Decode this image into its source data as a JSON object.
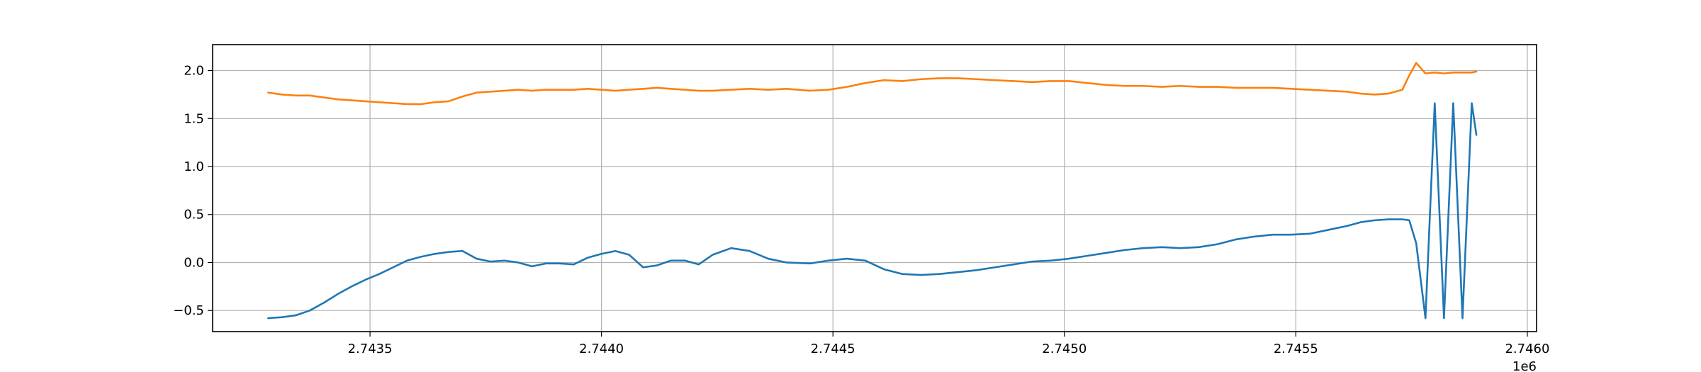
{
  "chart_data": {
    "type": "line",
    "title": "",
    "xlabel": "",
    "ylabel": "",
    "x_offset_text": "1e6",
    "xlim": [
      2.74316,
      2.74602
    ],
    "ylim": [
      -0.72,
      2.27
    ],
    "grid": true,
    "legend": "none",
    "x_ticks": [
      {
        "value": 2.7435,
        "label": "2.7435"
      },
      {
        "value": 2.744,
        "label": "2.7440"
      },
      {
        "value": 2.7445,
        "label": "2.7445"
      },
      {
        "value": 2.745,
        "label": "2.7450"
      },
      {
        "value": 2.7455,
        "label": "2.7455"
      },
      {
        "value": 2.746,
        "label": "2.7460"
      }
    ],
    "y_ticks": [
      {
        "value": -0.5,
        "label": "−0.5"
      },
      {
        "value": 0.0,
        "label": "0.0"
      },
      {
        "value": 0.5,
        "label": "0.5"
      },
      {
        "value": 1.0,
        "label": "1.0"
      },
      {
        "value": 1.5,
        "label": "1.5"
      },
      {
        "value": 2.0,
        "label": "2.0"
      }
    ],
    "series": [
      {
        "color": "#1f77b4",
        "x": [
          2.74328,
          2.74331,
          2.74334,
          2.74337,
          2.7434,
          2.74343,
          2.74346,
          2.74349,
          2.74352,
          2.74355,
          2.74358,
          2.74361,
          2.74364,
          2.74367,
          2.7437,
          2.74373,
          2.74376,
          2.74379,
          2.74382,
          2.74385,
          2.74388,
          2.74391,
          2.74394,
          2.74397,
          2.744,
          2.74403,
          2.74406,
          2.74409,
          2.74412,
          2.74415,
          2.74418,
          2.74421,
          2.74424,
          2.74428,
          2.74432,
          2.74436,
          2.7444,
          2.74445,
          2.74449,
          2.74453,
          2.74457,
          2.74461,
          2.74465,
          2.74469,
          2.74473,
          2.74477,
          2.74481,
          2.74485,
          2.74489,
          2.74493,
          2.74497,
          2.74501,
          2.74505,
          2.74509,
          2.74513,
          2.74517,
          2.74521,
          2.74525,
          2.74529,
          2.74533,
          2.74537,
          2.74541,
          2.74545,
          2.74549,
          2.74553,
          2.74557,
          2.74561,
          2.74564,
          2.74567,
          2.7457,
          2.74573,
          2.745745,
          2.74576,
          2.74578,
          2.7458,
          2.74582,
          2.74584,
          2.74586,
          2.74588,
          2.74589
        ],
        "values": [
          -0.58,
          -0.57,
          -0.55,
          -0.5,
          -0.42,
          -0.33,
          -0.25,
          -0.18,
          -0.12,
          -0.05,
          0.02,
          0.06,
          0.09,
          0.11,
          0.12,
          0.04,
          0.01,
          0.02,
          0.0,
          -0.04,
          -0.01,
          -0.01,
          -0.02,
          0.05,
          0.09,
          0.12,
          0.08,
          -0.05,
          -0.03,
          0.02,
          0.02,
          -0.02,
          0.08,
          0.15,
          0.12,
          0.04,
          0.0,
          -0.01,
          0.02,
          0.04,
          0.02,
          -0.07,
          -0.12,
          -0.13,
          -0.12,
          -0.1,
          -0.08,
          -0.05,
          -0.02,
          0.01,
          0.02,
          0.04,
          0.07,
          0.1,
          0.13,
          0.15,
          0.16,
          0.15,
          0.16,
          0.19,
          0.24,
          0.27,
          0.29,
          0.29,
          0.3,
          0.34,
          0.38,
          0.42,
          0.44,
          0.45,
          0.45,
          0.44,
          0.2,
          -0.58,
          1.66,
          -0.58,
          1.66,
          -0.58,
          1.66,
          1.33
        ]
      },
      {
        "color": "#ff7f0e",
        "x": [
          2.74328,
          2.74331,
          2.74334,
          2.74337,
          2.7434,
          2.74343,
          2.74346,
          2.74349,
          2.74352,
          2.74355,
          2.74358,
          2.74361,
          2.74364,
          2.74367,
          2.7437,
          2.74373,
          2.74376,
          2.74379,
          2.74382,
          2.74385,
          2.74388,
          2.74391,
          2.74394,
          2.74397,
          2.744,
          2.74403,
          2.74406,
          2.74409,
          2.74412,
          2.74415,
          2.74418,
          2.74421,
          2.74424,
          2.74428,
          2.74432,
          2.74436,
          2.7444,
          2.74445,
          2.74449,
          2.74453,
          2.74457,
          2.74461,
          2.74465,
          2.74469,
          2.74473,
          2.74477,
          2.74481,
          2.74485,
          2.74489,
          2.74493,
          2.74497,
          2.74501,
          2.74505,
          2.74509,
          2.74513,
          2.74517,
          2.74521,
          2.74525,
          2.74529,
          2.74533,
          2.74537,
          2.74541,
          2.74545,
          2.74549,
          2.74553,
          2.74557,
          2.74561,
          2.74564,
          2.74567,
          2.7457,
          2.74573,
          2.745745,
          2.74576,
          2.74578,
          2.7458,
          2.74582,
          2.74584,
          2.74586,
          2.74588,
          2.74589
        ],
        "values": [
          1.77,
          1.75,
          1.74,
          1.74,
          1.72,
          1.7,
          1.69,
          1.68,
          1.67,
          1.66,
          1.65,
          1.65,
          1.67,
          1.68,
          1.73,
          1.77,
          1.78,
          1.79,
          1.8,
          1.79,
          1.8,
          1.8,
          1.8,
          1.81,
          1.8,
          1.79,
          1.8,
          1.81,
          1.82,
          1.81,
          1.8,
          1.79,
          1.79,
          1.8,
          1.81,
          1.8,
          1.81,
          1.79,
          1.8,
          1.83,
          1.87,
          1.9,
          1.89,
          1.91,
          1.92,
          1.92,
          1.91,
          1.9,
          1.89,
          1.88,
          1.89,
          1.89,
          1.87,
          1.85,
          1.84,
          1.84,
          1.83,
          1.84,
          1.83,
          1.83,
          1.82,
          1.82,
          1.82,
          1.81,
          1.8,
          1.79,
          1.78,
          1.76,
          1.75,
          1.76,
          1.8,
          1.95,
          2.08,
          1.97,
          1.98,
          1.97,
          1.98,
          1.98,
          1.98,
          1.99
        ]
      }
    ]
  }
}
